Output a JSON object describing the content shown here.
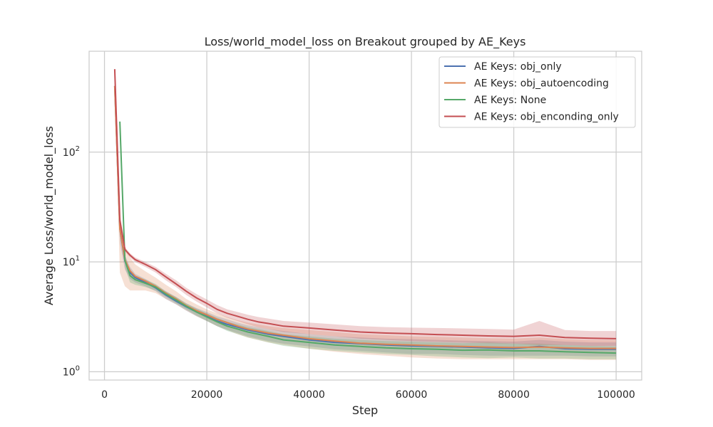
{
  "chart_data": {
    "type": "line",
    "title": "Loss/world_model_loss on Breakout grouped by AE_Keys",
    "xlabel": "Step",
    "ylabel": "Average Loss/world_model_loss",
    "xlim": [
      -3000,
      105000
    ],
    "ylim": [
      0.84,
      830
    ],
    "yscale": "log",
    "grid": true,
    "legend_position": "top-right",
    "x_ticks": [
      0,
      20000,
      40000,
      60000,
      80000,
      100000
    ],
    "x_tick_labels": [
      "0",
      "20000",
      "40000",
      "60000",
      "80000",
      "100000"
    ],
    "y_ticks": [
      1,
      10,
      100
    ],
    "y_tick_labels": [
      "10",
      "10",
      "10"
    ],
    "y_tick_exponents": [
      "0",
      "1",
      "2"
    ],
    "series": [
      {
        "name": "AE Keys: obj_only",
        "color": "#4c72b0",
        "x": [
          2000,
          3000,
          4000,
          5000,
          6000,
          8000,
          10000,
          12000,
          14000,
          16000,
          18000,
          20000,
          22000,
          24000,
          26000,
          28000,
          30000,
          32000,
          35000,
          40000,
          45000,
          50000,
          55000,
          60000,
          65000,
          70000,
          75000,
          80000,
          85000,
          90000,
          95000,
          100000
        ],
        "y": [
          400,
          20,
          10.2,
          8.0,
          7.2,
          6.5,
          5.8,
          5.0,
          4.4,
          3.9,
          3.5,
          3.2,
          2.9,
          2.7,
          2.55,
          2.4,
          2.3,
          2.2,
          2.1,
          1.95,
          1.85,
          1.8,
          1.75,
          1.72,
          1.7,
          1.68,
          1.65,
          1.63,
          1.7,
          1.62,
          1.6,
          1.6
        ],
        "band_low": [
          380,
          15,
          8.5,
          7.0,
          6.5,
          6.0,
          5.4,
          4.6,
          4.1,
          3.6,
          3.2,
          2.9,
          2.6,
          2.4,
          2.25,
          2.1,
          2.0,
          1.9,
          1.8,
          1.7,
          1.6,
          1.55,
          1.5,
          1.45,
          1.45,
          1.42,
          1.4,
          1.4,
          1.4,
          1.4,
          1.38,
          1.38
        ],
        "band_high": [
          420,
          24,
          11.5,
          9.0,
          7.8,
          7.0,
          6.2,
          5.4,
          4.8,
          4.2,
          3.8,
          3.5,
          3.2,
          3.0,
          2.8,
          2.65,
          2.55,
          2.45,
          2.35,
          2.2,
          2.1,
          2.05,
          2.0,
          1.98,
          1.95,
          1.92,
          1.9,
          1.88,
          1.95,
          1.88,
          1.85,
          1.85
        ]
      },
      {
        "name": "AE Keys: obj_autoencoding",
        "color": "#dd8452",
        "x": [
          2000,
          3000,
          4000,
          5000,
          6000,
          8000,
          10000,
          12000,
          14000,
          16000,
          18000,
          20000,
          22000,
          24000,
          26000,
          28000,
          30000,
          32000,
          35000,
          40000,
          45000,
          50000,
          55000,
          60000,
          65000,
          70000,
          75000,
          80000,
          85000,
          90000,
          95000,
          100000
        ],
        "y": [
          400,
          20,
          10.5,
          8.3,
          7.4,
          6.7,
          6.0,
          5.2,
          4.6,
          4.0,
          3.6,
          3.3,
          3.0,
          2.8,
          2.6,
          2.45,
          2.35,
          2.25,
          2.15,
          2.0,
          1.9,
          1.82,
          1.78,
          1.75,
          1.72,
          1.7,
          1.68,
          1.66,
          1.68,
          1.65,
          1.63,
          1.63
        ],
        "band_low": [
          360,
          8,
          6.0,
          5.5,
          5.5,
          5.5,
          5.2,
          4.6,
          4.1,
          3.6,
          3.2,
          2.9,
          2.6,
          2.4,
          2.2,
          2.05,
          1.95,
          1.85,
          1.75,
          1.62,
          1.52,
          1.45,
          1.4,
          1.35,
          1.32,
          1.3,
          1.3,
          1.3,
          1.3,
          1.3,
          1.28,
          1.28
        ],
        "band_high": [
          440,
          28,
          14.0,
          11.0,
          9.5,
          8.2,
          7.2,
          6.2,
          5.4,
          4.6,
          4.1,
          3.7,
          3.4,
          3.15,
          2.95,
          2.8,
          2.7,
          2.6,
          2.5,
          2.4,
          2.3,
          2.2,
          2.15,
          2.1,
          2.08,
          2.05,
          2.02,
          2.0,
          2.05,
          1.98,
          1.95,
          1.95
        ]
      },
      {
        "name": "AE Keys: None",
        "color": "#55a868",
        "x": [
          3000,
          4000,
          5000,
          6000,
          8000,
          10000,
          12000,
          14000,
          16000,
          18000,
          20000,
          22000,
          24000,
          26000,
          28000,
          30000,
          32000,
          35000,
          40000,
          45000,
          50000,
          55000,
          60000,
          65000,
          70000,
          75000,
          80000,
          85000,
          90000,
          95000,
          100000
        ],
        "y": [
          190,
          10.3,
          7.5,
          6.9,
          6.4,
          5.9,
          5.1,
          4.5,
          3.95,
          3.5,
          3.15,
          2.85,
          2.6,
          2.45,
          2.3,
          2.2,
          2.1,
          1.95,
          1.85,
          1.75,
          1.7,
          1.65,
          1.62,
          1.6,
          1.57,
          1.58,
          1.55,
          1.55,
          1.52,
          1.5,
          1.48
        ],
        "band_low": [
          185,
          9.0,
          6.5,
          6.2,
          5.9,
          5.5,
          4.8,
          4.2,
          3.7,
          3.25,
          2.9,
          2.6,
          2.35,
          2.2,
          2.05,
          1.95,
          1.85,
          1.72,
          1.62,
          1.55,
          1.5,
          1.45,
          1.42,
          1.38,
          1.35,
          1.33,
          1.35,
          1.32,
          1.32,
          1.3,
          1.3
        ],
        "band_high": [
          195,
          11.5,
          8.3,
          7.5,
          6.9,
          6.3,
          5.4,
          4.8,
          4.2,
          3.75,
          3.4,
          3.1,
          2.85,
          2.7,
          2.55,
          2.45,
          2.35,
          2.2,
          2.1,
          2.0,
          1.95,
          1.9,
          1.88,
          1.85,
          1.82,
          1.85,
          1.8,
          1.8,
          1.75,
          1.72,
          1.7
        ]
      },
      {
        "name": "AE Keys: obj_enconding_only",
        "color": "#c44e52",
        "x": [
          2000,
          3000,
          4000,
          5000,
          6000,
          8000,
          10000,
          12000,
          14000,
          16000,
          18000,
          20000,
          22000,
          24000,
          26000,
          28000,
          30000,
          32000,
          35000,
          40000,
          45000,
          50000,
          55000,
          60000,
          65000,
          70000,
          75000,
          80000,
          85000,
          90000,
          95000,
          100000
        ],
        "y": [
          570,
          24,
          13.0,
          11.5,
          10.5,
          9.5,
          8.5,
          7.3,
          6.3,
          5.4,
          4.7,
          4.2,
          3.7,
          3.4,
          3.2,
          3.0,
          2.85,
          2.75,
          2.6,
          2.5,
          2.4,
          2.3,
          2.25,
          2.22,
          2.18,
          2.15,
          2.12,
          2.1,
          2.15,
          2.05,
          2.02,
          2.0
        ],
        "band_low": [
          550,
          22,
          12.5,
          11.0,
          10.0,
          9.0,
          8.0,
          6.8,
          5.9,
          5.0,
          4.35,
          3.85,
          3.4,
          3.1,
          2.9,
          2.7,
          2.55,
          2.45,
          2.3,
          2.2,
          2.1,
          2.0,
          1.95,
          1.9,
          1.87,
          1.84,
          1.82,
          1.8,
          1.75,
          1.75,
          1.72,
          1.72
        ],
        "band_high": [
          590,
          26,
          13.5,
          12.0,
          11.0,
          10.0,
          9.0,
          7.8,
          6.8,
          5.8,
          5.1,
          4.55,
          4.05,
          3.7,
          3.5,
          3.3,
          3.15,
          3.05,
          2.9,
          2.8,
          2.7,
          2.6,
          2.55,
          2.52,
          2.5,
          2.48,
          2.45,
          2.42,
          2.9,
          2.4,
          2.35,
          2.35
        ]
      }
    ]
  }
}
